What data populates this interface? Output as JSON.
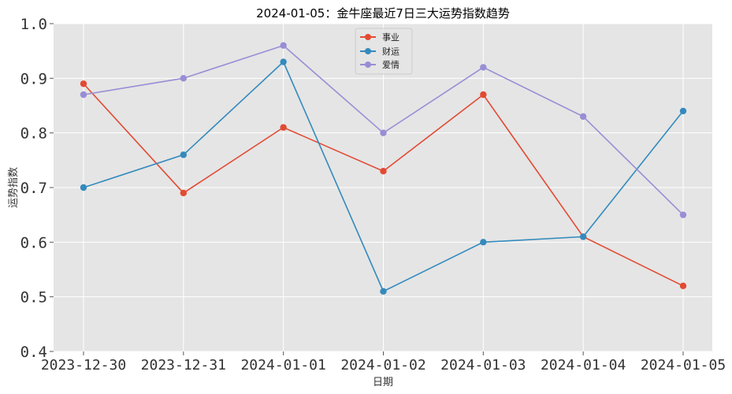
{
  "chart_data": {
    "type": "line",
    "title": "2024-01-05：金牛座最近7日三大运势指数趋势",
    "xlabel": "日期",
    "ylabel": "运势指数",
    "categories": [
      "2023-12-30",
      "2023-12-31",
      "2024-01-01",
      "2024-01-02",
      "2024-01-03",
      "2024-01-04",
      "2024-01-05"
    ],
    "ylim": [
      0.4,
      1.0
    ],
    "yticks": [
      "0.4",
      "0.5",
      "0.6",
      "0.7",
      "0.8",
      "0.9",
      "1.0"
    ],
    "grid": true,
    "legend_position": "top-center",
    "series": [
      {
        "name": "事业",
        "color": "#E24A33",
        "values": [
          0.89,
          0.69,
          0.81,
          0.73,
          0.87,
          0.61,
          0.52
        ]
      },
      {
        "name": "财运",
        "color": "#348ABD",
        "values": [
          0.7,
          0.76,
          0.93,
          0.51,
          0.6,
          0.61,
          0.84
        ]
      },
      {
        "name": "爱情",
        "color": "#988ED5",
        "values": [
          0.87,
          0.9,
          0.96,
          0.8,
          0.92,
          0.83,
          0.65
        ]
      }
    ]
  }
}
